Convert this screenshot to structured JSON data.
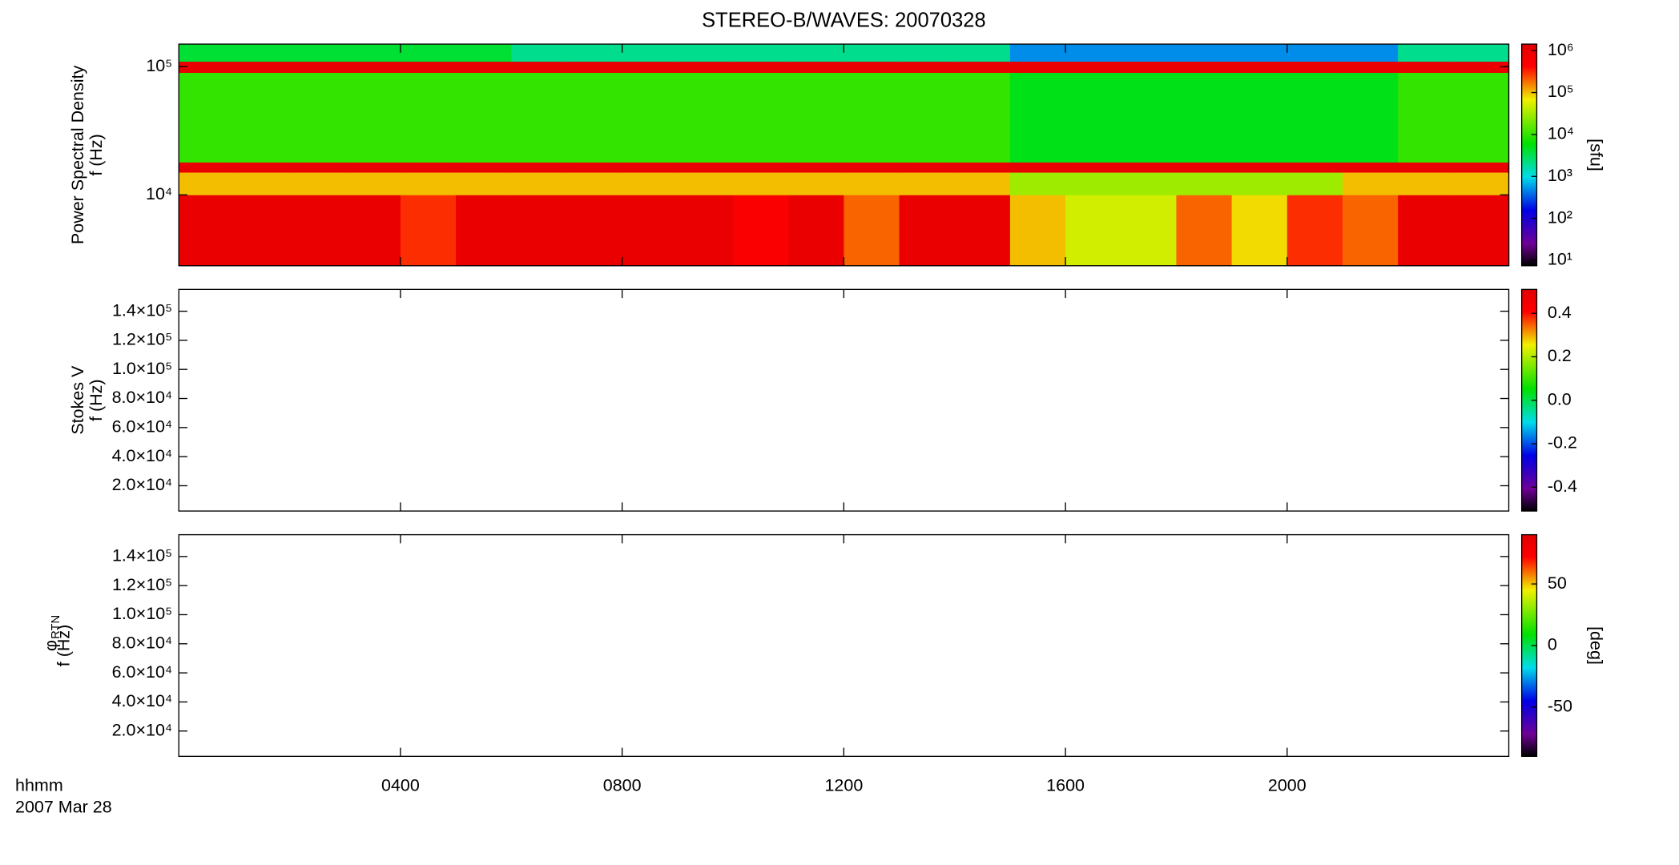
{
  "chart_data": [
    {
      "type": "heatmap",
      "title": "STEREO-B/WAVES: 20070328",
      "ylabel": "Power Spectral Density",
      "ylabel2": "f (Hz)",
      "ylog": true,
      "ylim": [
        2800,
        150000
      ],
      "yticks": [
        {
          "value": 10000,
          "label": "10⁴"
        },
        {
          "value": 100000,
          "label": "10⁵"
        }
      ],
      "x_edges": [
        0,
        1,
        2,
        3,
        4,
        5,
        6,
        7,
        8,
        9,
        10,
        11,
        12,
        13,
        14,
        15,
        16,
        17,
        18,
        19,
        20,
        21,
        22,
        23,
        24
      ],
      "y_edges": [
        2800,
        10000,
        15000,
        18000,
        90000,
        110000,
        150000
      ],
      "values": [
        [
          1000000,
          1000000,
          1000000,
          1000000,
          300000,
          1000000,
          1000000,
          1000000,
          1000000,
          1000000,
          500000,
          1000000,
          200000,
          1000000,
          1000000,
          100000,
          50000,
          50000,
          200000,
          80000,
          300000,
          200000,
          1000000,
          1000000
        ],
        [
          100000,
          100000,
          100000,
          100000,
          100000,
          100000,
          100000,
          100000,
          100000,
          100000,
          100000,
          100000,
          100000,
          100000,
          100000,
          30000,
          30000,
          30000,
          30000,
          30000,
          30000,
          100000,
          100000,
          100000
        ],
        [
          1000000,
          1000000,
          1000000,
          1000000,
          1000000,
          1000000,
          1000000,
          1000000,
          1000000,
          1000000,
          1000000,
          1000000,
          1000000,
          1000000,
          1000000,
          1000000,
          1000000,
          1000000,
          1000000,
          1000000,
          1000000,
          1000000,
          1000000,
          1000000
        ],
        [
          10000,
          10000,
          10000,
          10000,
          10000,
          10000,
          10000,
          10000,
          10000,
          10000,
          10000,
          10000,
          10000,
          10000,
          10000,
          5000,
          5000,
          5000,
          5000,
          5000,
          5000,
          5000,
          10000,
          10000
        ],
        [
          1000000,
          1000000,
          1000000,
          1000000,
          1000000,
          1000000,
          1000000,
          1000000,
          1000000,
          1000000,
          1000000,
          1000000,
          1000000,
          1000000,
          1000000,
          1000000,
          1000000,
          1000000,
          1000000,
          1000000,
          1000000,
          1000000,
          1000000,
          1000000
        ],
        [
          4000,
          4000,
          4000,
          4000,
          4000,
          4000,
          2000,
          2000,
          2000,
          2000,
          2000,
          2000,
          2000,
          2000,
          2000,
          500,
          500,
          500,
          500,
          500,
          500,
          500,
          2000,
          2000
        ]
      ],
      "clog": true,
      "clim": [
        7.4,
        1430000
      ],
      "clabel": "[sfu]",
      "cticks": [
        {
          "value": 10,
          "label": "10¹"
        },
        {
          "value": 100,
          "label": "10²"
        },
        {
          "value": 1000,
          "label": "10³"
        },
        {
          "value": 10000,
          "label": "10⁴"
        },
        {
          "value": 100000,
          "label": "10⁵"
        },
        {
          "value": 1000000,
          "label": "10⁶"
        }
      ]
    },
    {
      "type": "heatmap",
      "ylabel": "Stokes V",
      "ylabel2": "f (Hz)",
      "ylim": [
        2600,
        155000
      ],
      "yticks": [
        {
          "value": 20000,
          "label": "2.0×10⁴"
        },
        {
          "value": 40000,
          "label": "4.0×10⁴"
        },
        {
          "value": 60000,
          "label": "6.0×10⁴"
        },
        {
          "value": 80000,
          "label": "8.0×10⁴"
        },
        {
          "value": 100000,
          "label": "1.0×10⁵"
        },
        {
          "value": 120000,
          "label": "1.2×10⁵"
        },
        {
          "value": 140000,
          "label": "1.4×10⁵"
        }
      ],
      "clim": [
        -0.51,
        0.51
      ],
      "cticks": [
        -0.4,
        -0.2,
        {
          "value": 0,
          "label": "0.0"
        },
        0.2,
        0.4
      ]
    },
    {
      "type": "heatmap",
      "ylabel": "φ",
      "ylabel_sub": "RTN",
      "ylabel2": "f (Hz)",
      "ylim": [
        2600,
        155000
      ],
      "yticks": [
        {
          "value": 20000,
          "label": "2.0×10⁴"
        },
        {
          "value": 40000,
          "label": "4.0×10⁴"
        },
        {
          "value": 60000,
          "label": "6.0×10⁴"
        },
        {
          "value": 80000,
          "label": "8.0×10⁴"
        },
        {
          "value": 100000,
          "label": "1.0×10⁵"
        },
        {
          "value": 120000,
          "label": "1.2×10⁵"
        },
        {
          "value": 140000,
          "label": "1.4×10⁵"
        }
      ],
      "clim": [
        -90,
        90
      ],
      "clabel": "[deg]",
      "cticks": [
        -50,
        0,
        50
      ],
      "xlim": [
        0,
        24
      ],
      "xlabel": "hhmm",
      "date": "2007 Mar 28",
      "xticks": [
        {
          "value": 4,
          "label": "0400"
        },
        {
          "value": 8,
          "label": "0800"
        },
        {
          "value": 12,
          "label": "1200"
        },
        {
          "value": 16,
          "label": "1600"
        },
        {
          "value": 20,
          "label": "2000"
        }
      ]
    }
  ]
}
